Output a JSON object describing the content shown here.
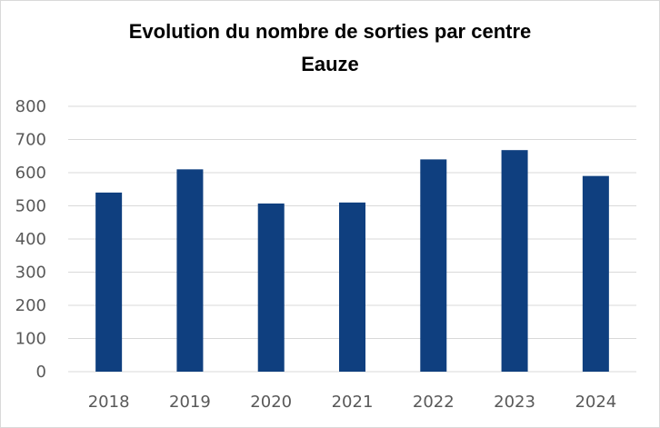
{
  "chart_data": {
    "type": "bar",
    "title": "Evolution du nombre de sorties par centre",
    "subtitle": "Eauze",
    "categories": [
      "2018",
      "2019",
      "2020",
      "2021",
      "2022",
      "2023",
      "2024"
    ],
    "values": [
      540,
      610,
      507,
      510,
      640,
      668,
      590
    ],
    "ylim": [
      0,
      800
    ],
    "yticks": [
      0,
      100,
      200,
      300,
      400,
      500,
      600,
      700,
      800
    ],
    "grid": true,
    "legend": "none",
    "bar_color": "#0f3f7f",
    "grid_color": "#d9d9d9",
    "axis_color": "#d9d9d9",
    "tick_color": "#595959"
  }
}
